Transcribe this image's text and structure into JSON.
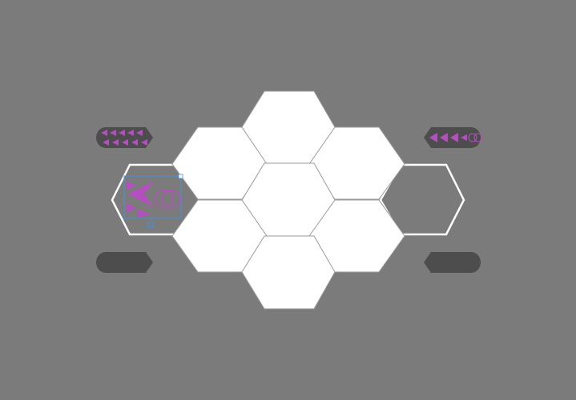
{
  "colors": {
    "canvas_background": "#7b7b7b",
    "tile_fill": "#ffffff",
    "tile_border": "#9b9b9b",
    "outline_stroke": "#ffffff",
    "pill_fill": "#4d4d4d",
    "selection_box": "#4a90d9",
    "glyph_accent": "#b44fc0"
  },
  "tiles": [
    {
      "name": "hex-tile-top",
      "state": "filled"
    },
    {
      "name": "hex-tile-upper-left",
      "state": "filled"
    },
    {
      "name": "hex-tile-upper-right",
      "state": "filled"
    },
    {
      "name": "hex-tile-center",
      "state": "filled"
    },
    {
      "name": "hex-tile-lower-left",
      "state": "filled"
    },
    {
      "name": "hex-tile-lower-right",
      "state": "filled"
    },
    {
      "name": "hex-tile-bottom",
      "state": "filled"
    },
    {
      "name": "hex-tile-right",
      "state": "empty-outline"
    },
    {
      "name": "hex-tile-left",
      "state": "empty-outline-selected"
    }
  ],
  "pills": [
    {
      "name": "pill-top-left",
      "direction": "right",
      "has_icons": true
    },
    {
      "name": "pill-top-right",
      "direction": "left",
      "has_icons": true
    },
    {
      "name": "pill-bottom-left",
      "direction": "right",
      "has_icons": false
    },
    {
      "name": "pill-bottom-right",
      "direction": "left",
      "has_icons": false
    }
  ],
  "icons": {
    "pill_glyph": "arrow-triangle-icon",
    "selected_glyph": "arrow-chevron-icon",
    "selected_ring": "ring-icon",
    "selection_handle": "rotate-handle-icon"
  }
}
